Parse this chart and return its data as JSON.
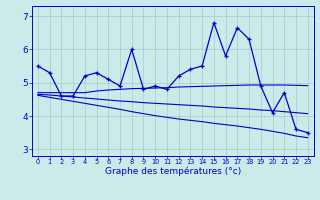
{
  "xlabel": "Graphe des températures (°c)",
  "x_labels": [
    "0",
    "1",
    "2",
    "3",
    "4",
    "5",
    "6",
    "7",
    "8",
    "9",
    "10",
    "11",
    "12",
    "13",
    "14",
    "15",
    "16",
    "17",
    "18",
    "19",
    "20",
    "21",
    "22",
    "23"
  ],
  "ylim": [
    2.8,
    7.3
  ],
  "yticks": [
    3,
    4,
    5,
    6,
    7
  ],
  "line1": [
    5.5,
    5.3,
    4.6,
    4.6,
    5.2,
    5.3,
    5.1,
    4.9,
    6.0,
    4.8,
    4.9,
    4.8,
    5.2,
    5.4,
    5.5,
    6.8,
    5.8,
    6.65,
    6.3,
    4.9,
    4.1,
    4.7,
    3.6,
    3.5
  ],
  "line2": [
    4.7,
    4.7,
    4.7,
    4.7,
    4.7,
    4.75,
    4.78,
    4.8,
    4.82,
    4.83,
    4.84,
    4.85,
    4.87,
    4.88,
    4.89,
    4.9,
    4.91,
    4.92,
    4.93,
    4.93,
    4.93,
    4.93,
    4.92,
    4.91
  ],
  "line3": [
    4.65,
    4.63,
    4.6,
    4.57,
    4.54,
    4.51,
    4.48,
    4.45,
    4.43,
    4.4,
    4.38,
    4.36,
    4.34,
    4.32,
    4.3,
    4.27,
    4.25,
    4.23,
    4.21,
    4.18,
    4.16,
    4.13,
    4.1,
    4.07
  ],
  "line4": [
    4.62,
    4.56,
    4.5,
    4.44,
    4.38,
    4.32,
    4.26,
    4.2,
    4.13,
    4.07,
    4.01,
    3.96,
    3.91,
    3.87,
    3.83,
    3.78,
    3.74,
    3.7,
    3.65,
    3.6,
    3.54,
    3.48,
    3.4,
    3.35
  ],
  "bg_color": "#cdeaea",
  "line_color": "#0000cc",
  "grid_color": "#9ecece"
}
